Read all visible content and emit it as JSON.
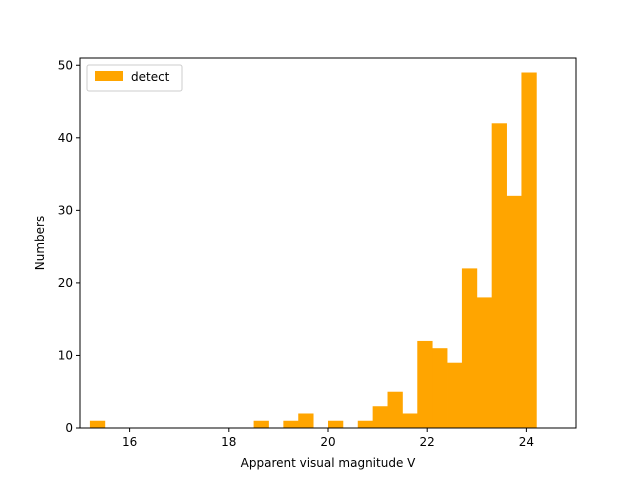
{
  "chart_data": {
    "type": "bar",
    "title": "",
    "xlabel": "Apparent visual magnitude V",
    "ylabel": "Numbers",
    "xlim": [
      15.0,
      25.0
    ],
    "ylim": [
      0,
      51
    ],
    "xticks": [
      16,
      18,
      20,
      22,
      24
    ],
    "yticks": [
      0,
      10,
      20,
      30,
      40,
      50
    ],
    "grid": false,
    "legend": {
      "position": "upper left",
      "entries": [
        {
          "label": "detect",
          "color": "#ffa500"
        }
      ]
    },
    "series": [
      {
        "name": "detect",
        "color": "#ffa500",
        "bin_width": 0.3,
        "bins": [
          {
            "x0": 15.2,
            "value": 1
          },
          {
            "x0": 15.5,
            "value": 0
          },
          {
            "x0": 15.8,
            "value": 0
          },
          {
            "x0": 16.1,
            "value": 0
          },
          {
            "x0": 16.4,
            "value": 0
          },
          {
            "x0": 16.7,
            "value": 0
          },
          {
            "x0": 17.0,
            "value": 0
          },
          {
            "x0": 17.3,
            "value": 0
          },
          {
            "x0": 17.6,
            "value": 0
          },
          {
            "x0": 17.9,
            "value": 0
          },
          {
            "x0": 18.2,
            "value": 0
          },
          {
            "x0": 18.5,
            "value": 1
          },
          {
            "x0": 18.8,
            "value": 0
          },
          {
            "x0": 19.1,
            "value": 1
          },
          {
            "x0": 19.4,
            "value": 2
          },
          {
            "x0": 19.7,
            "value": 0
          },
          {
            "x0": 20.0,
            "value": 1
          },
          {
            "x0": 20.3,
            "value": 0
          },
          {
            "x0": 20.6,
            "value": 1
          },
          {
            "x0": 20.9,
            "value": 3
          },
          {
            "x0": 21.2,
            "value": 5
          },
          {
            "x0": 21.5,
            "value": 2
          },
          {
            "x0": 21.8,
            "value": 12
          },
          {
            "x0": 22.1,
            "value": 11
          },
          {
            "x0": 22.4,
            "value": 9
          },
          {
            "x0": 22.7,
            "value": 22
          },
          {
            "x0": 23.0,
            "value": 18
          },
          {
            "x0": 23.3,
            "value": 42
          },
          {
            "x0": 23.6,
            "value": 32
          },
          {
            "x0": 23.9,
            "value": 49
          }
        ]
      }
    ]
  }
}
